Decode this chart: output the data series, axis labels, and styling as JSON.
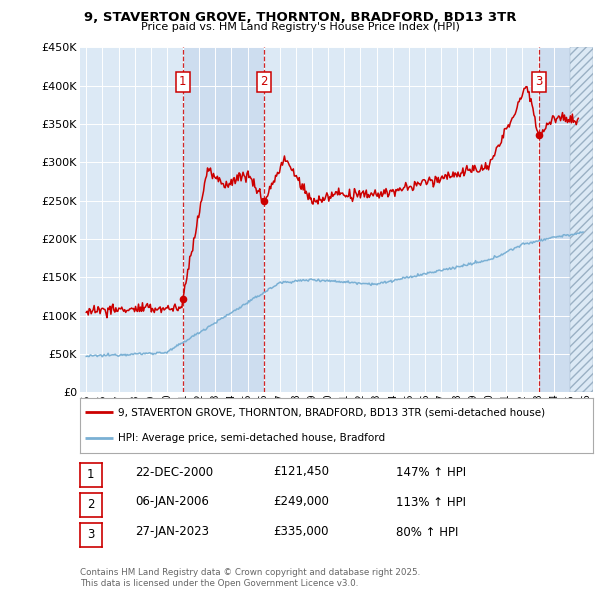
{
  "title": "9, STAVERTON GROVE, THORNTON, BRADFORD, BD13 3TR",
  "subtitle": "Price paid vs. HM Land Registry's House Price Index (HPI)",
  "ylim": [
    0,
    450000
  ],
  "yticks": [
    0,
    50000,
    100000,
    150000,
    200000,
    250000,
    300000,
    350000,
    400000,
    450000
  ],
  "ytick_labels": [
    "£0",
    "£50K",
    "£100K",
    "£150K",
    "£200K",
    "£250K",
    "£300K",
    "£350K",
    "£400K",
    "£450K"
  ],
  "xlim_start": 1994.6,
  "xlim_end": 2026.4,
  "background_color": "#dce9f5",
  "grid_color": "#ffffff",
  "shade_color": "#c8d8ed",
  "transactions": [
    {
      "num": 1,
      "date": "22-DEC-2000",
      "price": 121450,
      "year": 2000.97,
      "pct": "147%",
      "dir": "↑"
    },
    {
      "num": 2,
      "date": "06-JAN-2006",
      "price": 249000,
      "year": 2006.02,
      "pct": "113%",
      "dir": "↑"
    },
    {
      "num": 3,
      "date": "27-JAN-2023",
      "price": 335000,
      "year": 2023.07,
      "pct": "80%",
      "dir": "↑"
    }
  ],
  "legend_property": "9, STAVERTON GROVE, THORNTON, BRADFORD, BD13 3TR (semi-detached house)",
  "legend_hpi": "HPI: Average price, semi-detached house, Bradford",
  "footer": "Contains HM Land Registry data © Crown copyright and database right 2025.\nThis data is licensed under the Open Government Licence v3.0.",
  "red_color": "#cc0000",
  "blue_color": "#7ab0d4"
}
